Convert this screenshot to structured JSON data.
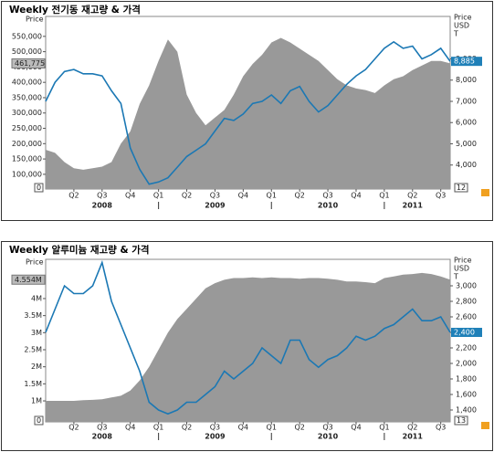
{
  "chart_data": [
    {
      "type": "combo",
      "title": "Weekly 전기동 재고량 & 가격",
      "y_label": "Price",
      "y2_label": [
        "Price",
        "USD",
        "T"
      ],
      "categories": [
        null,
        null,
        null,
        "Q2",
        null,
        null,
        "Q3",
        null,
        null,
        "Q4",
        null,
        null,
        "Q1",
        null,
        null,
        "Q2",
        null,
        null,
        "Q3",
        null,
        null,
        "Q4",
        null,
        null,
        "Q1",
        null,
        null,
        "Q2",
        null,
        null,
        "Q3",
        null,
        null,
        "Q4",
        null,
        null,
        "Q1",
        null,
        null,
        "Q2",
        null,
        null,
        "Q3",
        null
      ],
      "years": [
        null,
        null,
        null,
        null,
        null,
        null,
        "2008",
        null,
        null,
        null,
        null,
        null,
        null,
        null,
        null,
        null,
        null,
        null,
        "2009",
        null,
        null,
        null,
        null,
        null,
        null,
        null,
        null,
        null,
        null,
        null,
        "2010",
        null,
        null,
        null,
        null,
        null,
        null,
        null,
        null,
        "2011",
        null,
        null,
        null,
        null
      ],
      "series": [
        {
          "type": "area",
          "color": "#999999",
          "last_label": "461,775",
          "values": [
            180000,
            170000,
            140000,
            120000,
            115000,
            120000,
            125000,
            140000,
            200000,
            240000,
            330000,
            390000,
            470000,
            540000,
            500000,
            360000,
            300000,
            260000,
            285000,
            310000,
            360000,
            420000,
            460000,
            490000,
            530000,
            545000,
            530000,
            510000,
            490000,
            470000,
            440000,
            410000,
            390000,
            380000,
            375000,
            365000,
            390000,
            410000,
            420000,
            440000,
            455000,
            470000,
            470000,
            461775
          ]
        },
        {
          "type": "line",
          "axis": "y2",
          "color": "#1b78b4",
          "last_label": "8,885",
          "values": [
            7000,
            7900,
            8400,
            8500,
            8300,
            8300,
            8200,
            7500,
            6900,
            4800,
            3800,
            3100,
            3200,
            3400,
            3900,
            4400,
            4700,
            5000,
            5600,
            6200,
            6100,
            6400,
            6900,
            7000,
            7300,
            6900,
            7500,
            7700,
            7000,
            6500,
            6800,
            7300,
            7800,
            8200,
            8500,
            9000,
            9500,
            9800,
            9500,
            9600,
            9000,
            9200,
            9500,
            8885
          ]
        }
      ],
      "ylim": [
        52000,
        615000
      ],
      "yticks": [
        {
          "value": 100000,
          "label": "100,000"
        },
        {
          "value": 150000,
          "label": "150,000"
        },
        {
          "value": 200000,
          "label": "200,000"
        },
        {
          "value": 250000,
          "label": "250,000"
        },
        {
          "value": 300000,
          "label": "300,000"
        },
        {
          "value": 350000,
          "label": "350,000"
        },
        {
          "value": 400000,
          "label": "400,000"
        },
        {
          "value": 450000,
          "label": "450,000"
        },
        {
          "value": 500000,
          "label": "500,000"
        },
        {
          "value": 550000,
          "label": "550,000"
        }
      ],
      "y2lim": [
        2870,
        11000
      ],
      "y2ticks": [
        {
          "value": 4000,
          "label": "4,000"
        },
        {
          "value": 5000,
          "label": "5,000"
        },
        {
          "value": 6000,
          "label": "6,000"
        },
        {
          "value": 7000,
          "label": "7,000"
        },
        {
          "value": 8000,
          "label": "8,000"
        },
        {
          "value": 9000,
          "label": "9,000"
        }
      ],
      "corner_labels": [
        "0",
        "12"
      ]
    },
    {
      "type": "combo",
      "title": "Weekly 알루미늄 재고량 & 가격",
      "y_label": "Price",
      "y2_label": [
        "Price",
        "USD",
        "T"
      ],
      "categories": [
        null,
        null,
        null,
        "Q2",
        null,
        null,
        "Q3",
        null,
        null,
        "Q4",
        null,
        null,
        "Q1",
        null,
        null,
        "Q2",
        null,
        null,
        "Q3",
        null,
        null,
        "Q4",
        null,
        null,
        "Q1",
        null,
        null,
        "Q2",
        null,
        null,
        "Q3",
        null,
        null,
        "Q4",
        null,
        null,
        "Q1",
        null,
        null,
        "Q2",
        null,
        null,
        "Q3",
        null
      ],
      "years": [
        null,
        null,
        null,
        null,
        null,
        null,
        "2008",
        null,
        null,
        null,
        null,
        null,
        null,
        null,
        null,
        null,
        null,
        null,
        "2009",
        null,
        null,
        null,
        null,
        null,
        null,
        null,
        null,
        null,
        null,
        null,
        "2010",
        null,
        null,
        null,
        null,
        null,
        null,
        null,
        null,
        "2011",
        null,
        null,
        null,
        null
      ],
      "series": [
        {
          "type": "area",
          "color": "#999999",
          "last_label": "4.554M",
          "values": [
            1000000,
            1000000,
            1000000,
            1000000,
            1020000,
            1030000,
            1050000,
            1100000,
            1150000,
            1300000,
            1600000,
            2000000,
            2500000,
            3000000,
            3400000,
            3700000,
            4000000,
            4300000,
            4450000,
            4550000,
            4600000,
            4600000,
            4620000,
            4600000,
            4620000,
            4600000,
            4600000,
            4580000,
            4600000,
            4600000,
            4580000,
            4550000,
            4500000,
            4500000,
            4480000,
            4450000,
            4600000,
            4650000,
            4700000,
            4720000,
            4750000,
            4720000,
            4650000,
            4554000
          ]
        },
        {
          "type": "line",
          "axis": "y2",
          "color": "#1b78b4",
          "last_label": "2,400",
          "values": [
            2400,
            2700,
            3000,
            2900,
            2900,
            3000,
            3300,
            2800,
            2500,
            2200,
            1900,
            1500,
            1400,
            1350,
            1400,
            1500,
            1500,
            1600,
            1700,
            1900,
            1800,
            1900,
            2000,
            2200,
            2100,
            2000,
            2300,
            2300,
            2050,
            1950,
            2050,
            2100,
            2200,
            2350,
            2300,
            2350,
            2450,
            2500,
            2600,
            2700,
            2550,
            2550,
            2600,
            2400
          ]
        }
      ],
      "ylim": [
        385000,
        5150000
      ],
      "yticks": [
        {
          "value": 1000000,
          "label": "1M"
        },
        {
          "value": 1500000,
          "label": "1.5M"
        },
        {
          "value": 2000000,
          "label": "2M"
        },
        {
          "value": 2500000,
          "label": "2.5M"
        },
        {
          "value": 3000000,
          "label": "3M"
        },
        {
          "value": 3500000,
          "label": "3.5M"
        },
        {
          "value": 4000000,
          "label": "4M"
        }
      ],
      "y2lim": [
        1247,
        3341
      ],
      "y2ticks": [
        {
          "value": 1400,
          "label": "1,400"
        },
        {
          "value": 1600,
          "label": "1,600"
        },
        {
          "value": 1800,
          "label": "1,800"
        },
        {
          "value": 2000,
          "label": "2,000"
        },
        {
          "value": 2200,
          "label": "2,200"
        },
        {
          "value": 2400,
          "label": "2,400"
        },
        {
          "value": 2600,
          "label": "2,600"
        },
        {
          "value": 2800,
          "label": "2,800"
        },
        {
          "value": 3000,
          "label": "3,000"
        }
      ],
      "corner_labels": [
        "0",
        "13"
      ]
    }
  ]
}
